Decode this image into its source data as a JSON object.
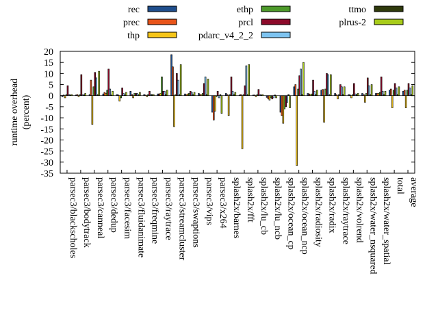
{
  "chart_data": {
    "type": "bar",
    "title": "",
    "xlabel": "",
    "ylabel": "runtime overhead (percent)",
    "ylabel_lines": [
      "runtime overhead",
      "(percent)"
    ],
    "ylim": [
      -35,
      20
    ],
    "yticks": [
      20,
      15,
      10,
      5,
      0,
      -5,
      -10,
      -15,
      -20,
      -25,
      -30,
      -35
    ],
    "grid": false,
    "legend_position": "top",
    "categories": [
      "parsec3/blackscholes",
      "parsec3/bodytrack",
      "parsec3/canneal",
      "parsec3/dedup",
      "parsec3/facesim",
      "parsec3/fluidanimate",
      "parsec3/freqmine",
      "parsec3/raytrace",
      "parsec3/streamcluster",
      "parsec3/swaptions",
      "parsec3/vips",
      "parsec3/x264",
      "splash2x/barnes",
      "splash2x/fft",
      "splash2x/lu_cb",
      "splash2x/lu_ncb",
      "splash2x/ocean_cp",
      "splash2x/ocean_ncp",
      "splash2x/radiosity",
      "splash2x/radix",
      "splash2x/raytrace",
      "splash2x/volrend",
      "splash2x/water_nsquared",
      "splash2x/water_spatial",
      "total",
      "average"
    ],
    "series": [
      {
        "name": "rec",
        "color": "#1f4e8c",
        "values": [
          -0.5,
          0.3,
          0.5,
          0.8,
          0.5,
          2.0,
          0.5,
          0.8,
          18.5,
          0.8,
          1.0,
          -7.5,
          1.0,
          0.3,
          0.3,
          -0.8,
          -7.5,
          4.0,
          1.0,
          2.5,
          1.0,
          0.5,
          1.0,
          1.0,
          2.5,
          2.0
        ]
      },
      {
        "name": "prec",
        "color": "#e8541a",
        "values": [
          0.3,
          0.5,
          7.0,
          1.5,
          0.3,
          0.5,
          0.3,
          0.8,
          13.0,
          0.5,
          0.5,
          -11.0,
          0.5,
          0.5,
          0.3,
          -1.5,
          -9.0,
          5.0,
          0.8,
          2.8,
          0.5,
          0.3,
          0.5,
          1.0,
          3.0,
          2.5
        ]
      },
      {
        "name": "thp",
        "color": "#f5c518",
        "values": [
          -1.0,
          -0.5,
          -13.0,
          1.0,
          -2.5,
          -1.0,
          -0.5,
          1.0,
          -14.0,
          0.8,
          0.5,
          -7.0,
          -9.0,
          -24.0,
          -0.5,
          -2.0,
          -12.5,
          -31.5,
          0.5,
          -12.0,
          -1.5,
          -1.0,
          -3.0,
          1.0,
          -5.5,
          -5.5
        ]
      },
      {
        "name": "ethp",
        "color": "#4d9a2a",
        "values": [
          0.5,
          0.5,
          4.0,
          2.5,
          -1.0,
          1.0,
          0.5,
          8.5,
          0.5,
          1.0,
          1.0,
          -0.5,
          0.5,
          0.5,
          0.5,
          -1.0,
          -6.0,
          3.0,
          0.8,
          3.0,
          0.5,
          0.5,
          1.0,
          1.5,
          2.5,
          2.5
        ]
      },
      {
        "name": "prcl",
        "color": "#8c0a2a",
        "values": [
          4.5,
          9.5,
          10.5,
          12.0,
          3.5,
          1.0,
          2.0,
          2.0,
          10.0,
          2.0,
          5.5,
          2.0,
          8.5,
          4.5,
          2.8,
          -1.5,
          -5.0,
          9.0,
          7.0,
          10.0,
          5.0,
          5.5,
          8.0,
          8.5,
          5.5,
          5.5
        ]
      },
      {
        "name": "pdarc_v4_2_2",
        "color": "#7dc3f0",
        "values": [
          0.5,
          0.5,
          8.0,
          3.0,
          1.0,
          1.0,
          0.5,
          2.0,
          7.0,
          1.5,
          8.5,
          -1.0,
          2.0,
          13.5,
          0.5,
          -1.0,
          -3.0,
          12.0,
          2.0,
          9.5,
          4.0,
          0.8,
          4.5,
          2.0,
          3.5,
          3.5
        ]
      },
      {
        "name": "ttmo",
        "color": "#2f3a0c",
        "values": [
          0.3,
          0.3,
          0.5,
          0.3,
          0.3,
          0.5,
          0.5,
          0.5,
          0.5,
          0.5,
          0.5,
          0.5,
          0.5,
          0.5,
          0.3,
          0.3,
          0.5,
          0.5,
          0.5,
          0.5,
          0.5,
          0.5,
          0.5,
          0.5,
          0.5,
          0.5
        ]
      },
      {
        "name": "plrus-2",
        "color": "#a8cc1a",
        "values": [
          0.5,
          1.0,
          11.0,
          2.0,
          1.5,
          1.5,
          0.5,
          2.5,
          14.0,
          1.5,
          7.5,
          -8.0,
          1.5,
          14.0,
          0.5,
          -1.0,
          -5.5,
          15.0,
          2.5,
          9.5,
          4.0,
          1.0,
          5.0,
          2.0,
          4.0,
          4.5
        ]
      }
    ]
  }
}
